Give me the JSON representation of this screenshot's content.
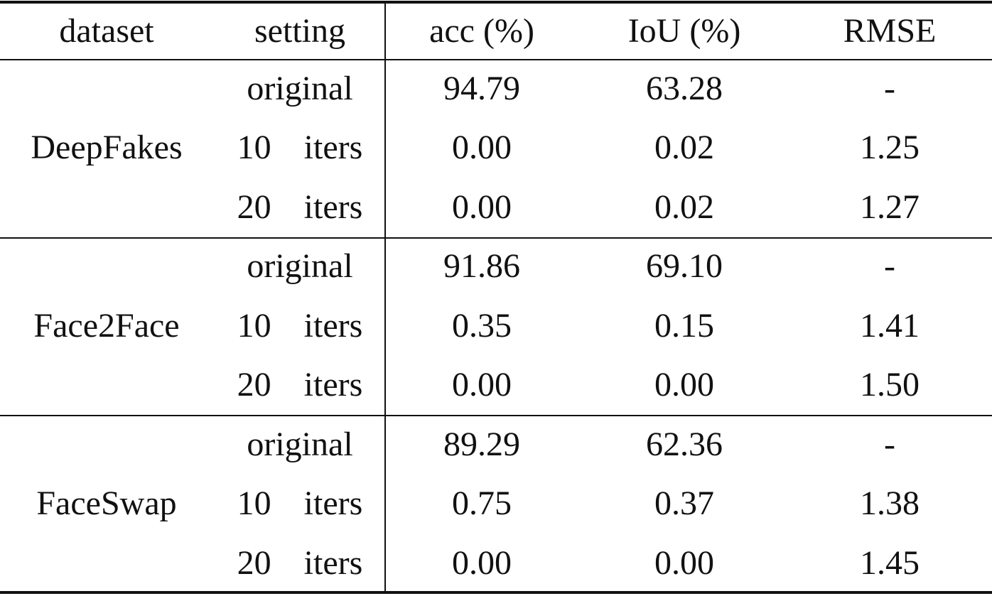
{
  "table": {
    "header": [
      "dataset",
      "setting",
      "acc (%)",
      "IoU (%)",
      "RMSE"
    ],
    "groups": [
      {
        "dataset": "DeepFakes",
        "rows": [
          [
            "original",
            "94.79",
            "63.28",
            "-"
          ],
          [
            "10 iters",
            "0.00",
            "0.02",
            "1.25"
          ],
          [
            "20 iters",
            "0.00",
            "0.02",
            "1.27"
          ]
        ]
      },
      {
        "dataset": "Face2Face",
        "rows": [
          [
            "original",
            "91.86",
            "69.10",
            "-"
          ],
          [
            "10 iters",
            "0.35",
            "0.15",
            "1.41"
          ],
          [
            "20 iters",
            "0.00",
            "0.00",
            "1.50"
          ]
        ]
      },
      {
        "dataset": "FaceSwap",
        "rows": [
          [
            "original",
            "89.29",
            "62.36",
            "-"
          ],
          [
            "10 iters",
            "0.75",
            "0.37",
            "1.38"
          ],
          [
            "20 iters",
            "0.00",
            "0.00",
            "1.45"
          ]
        ]
      }
    ]
  }
}
